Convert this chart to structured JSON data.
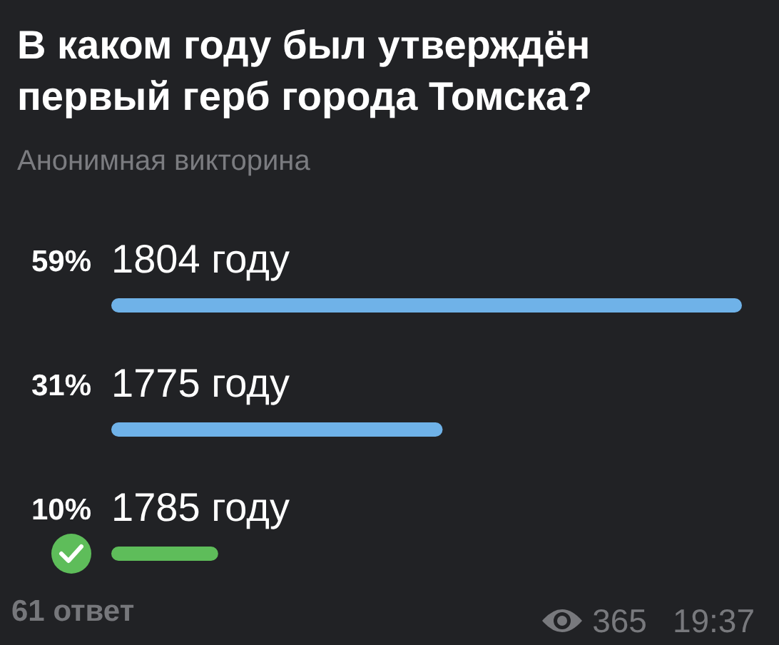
{
  "chart_data": {
    "type": "bar",
    "orientation": "horizontal",
    "title": "В каком году был утверждён первый герб города Томска?",
    "subtitle": "Анонимная викторина",
    "categories": [
      "1804 году",
      "1775 году",
      "1785 году"
    ],
    "values": [
      59,
      31,
      10
    ],
    "value_labels": [
      "59%",
      "31%",
      "10%"
    ],
    "colors": [
      "#6fb2e8",
      "#6fb2e8",
      "#5ebd5a"
    ],
    "annotations": [
      "61 ответ",
      "365",
      "19:37"
    ]
  }
}
